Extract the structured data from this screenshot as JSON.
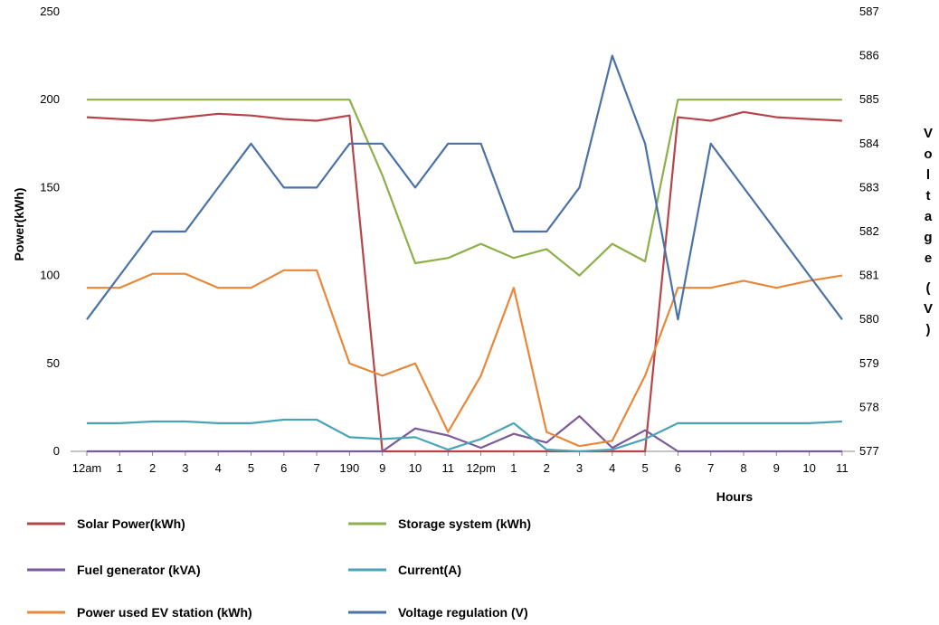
{
  "chart_data": {
    "type": "line",
    "xlabel": "Hours",
    "ylabel": "Power(kWh)",
    "y2label": "Voltage (V)",
    "categories": [
      "12am",
      "1",
      "2",
      "3",
      "4",
      "5",
      "6",
      "7",
      "190",
      "9",
      "10",
      "11",
      "12pm",
      "1",
      "2",
      "3",
      "4",
      "5",
      "6",
      "7",
      "8",
      "9",
      "10",
      "11"
    ],
    "ylim": [
      0,
      250
    ],
    "y_ticks": [
      0,
      50,
      100,
      150,
      200,
      250
    ],
    "y2lim": [
      577,
      587
    ],
    "y2_ticks": [
      577,
      578,
      579,
      580,
      581,
      582,
      583,
      584,
      585,
      586,
      587
    ],
    "grid": false,
    "legend_position": "bottom",
    "series": [
      {
        "name": "Solar Power(kWh)",
        "axis": "left",
        "color": "#b5454a",
        "values": [
          190,
          189,
          188,
          190,
          192,
          191,
          189,
          188,
          191,
          0,
          0,
          0,
          0,
          0,
          0,
          0,
          0,
          0,
          190,
          188,
          193,
          190,
          189,
          188
        ]
      },
      {
        "name": "Storage system (kWh)",
        "axis": "left",
        "color": "#8db04a",
        "values": [
          200,
          200,
          200,
          200,
          200,
          200,
          200,
          200,
          200,
          157,
          107,
          110,
          118,
          110,
          115,
          100,
          118,
          108,
          200,
          200,
          200,
          200,
          200,
          200
        ]
      },
      {
        "name": "Fuel generator (kVA)",
        "axis": "left",
        "color": "#7a5a9a",
        "values": [
          0,
          0,
          0,
          0,
          0,
          0,
          0,
          0,
          0,
          0,
          13,
          9,
          2,
          10,
          5,
          20,
          2,
          12,
          0,
          0,
          0,
          0,
          0,
          0
        ]
      },
      {
        "name": "Current(A)",
        "axis": "left",
        "color": "#4aa4b8",
        "values": [
          16,
          16,
          17,
          17,
          16,
          16,
          18,
          18,
          8,
          7,
          8,
          1,
          7,
          16,
          1,
          0,
          1,
          7,
          16,
          16,
          16,
          16,
          16,
          17
        ]
      },
      {
        "name": "Power used EV station (kWh)",
        "axis": "left",
        "color": "#e8873a",
        "values": [
          93,
          93,
          101,
          101,
          93,
          93,
          103,
          103,
          50,
          43,
          50,
          11,
          43,
          93,
          11,
          3,
          6,
          43,
          93,
          93,
          97,
          93,
          97,
          100
        ]
      },
      {
        "name": "Voltage regulation (V)",
        "axis": "right",
        "color": "#4a72a8",
        "values": [
          580,
          581,
          582,
          582,
          583,
          584,
          583,
          583,
          584,
          584,
          583,
          584,
          584,
          582,
          582,
          583,
          586,
          584,
          580,
          584,
          583,
          582,
          581,
          580
        ]
      }
    ]
  }
}
